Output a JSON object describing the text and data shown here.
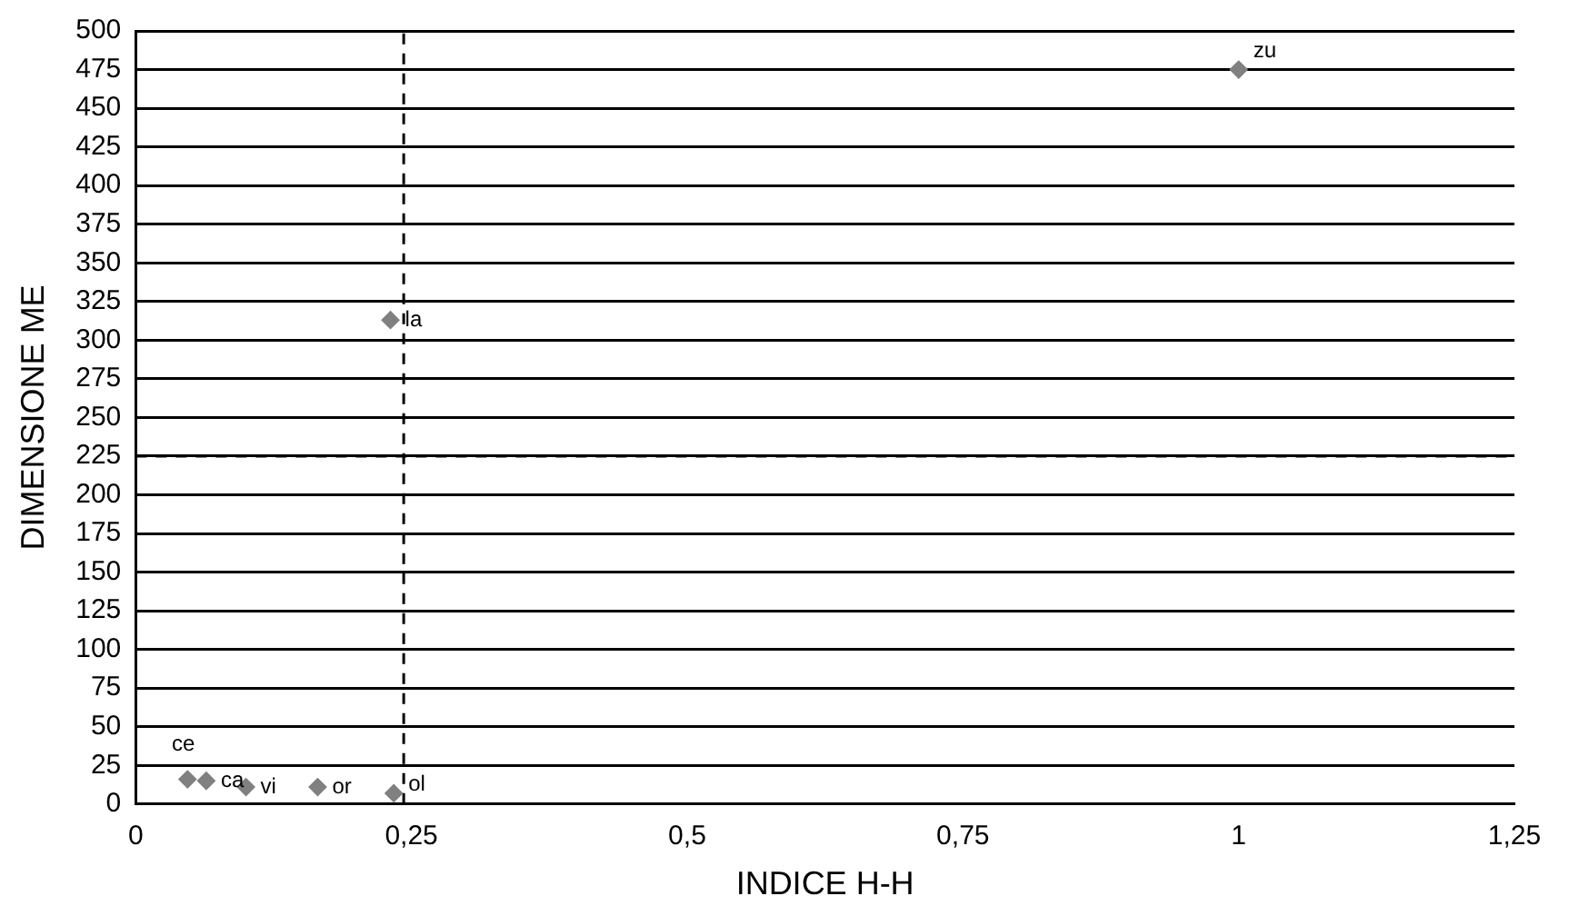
{
  "chart_data": {
    "type": "scatter",
    "xlabel": "INDICE H-H",
    "ylabel": "DIMENSIONE ME",
    "x": [
      0.047,
      0.064,
      0.1,
      0.165,
      0.234,
      0.231,
      1.0
    ],
    "series": [
      {
        "color": "#808080",
        "values": [
          16,
          15,
          11,
          11,
          7,
          313,
          475
        ]
      }
    ],
    "marker": "diamond",
    "xlim": [
      0,
      1.25
    ],
    "xticks": [
      0,
      {
        "value": 0.25,
        "label": "0,25"
      },
      {
        "value": 0.5,
        "label": "0,5"
      },
      {
        "value": 0.75,
        "label": "0,75"
      },
      1,
      {
        "value": 1.25,
        "label": "1,25"
      }
    ],
    "ylim": [
      0,
      500
    ],
    "yticks": [
      0,
      25,
      50,
      75,
      100,
      125,
      150,
      175,
      200,
      225,
      250,
      275,
      300,
      325,
      350,
      375,
      400,
      425,
      450,
      475,
      500
    ],
    "grid": "y",
    "legend": false,
    "ref_lines": [
      {
        "axis": "x",
        "value": 0.243,
        "line_style": "dashed",
        "color": "#000000"
      },
      {
        "axis": "y",
        "value": 225,
        "line_style": "dashed",
        "color": "#000000"
      }
    ],
    "annotations": [
      {
        "text": "ce",
        "x": 0.047,
        "y": 16
      },
      {
        "text": "ca",
        "x": 0.064,
        "y": 15
      },
      {
        "text": "vi",
        "x": 0.1,
        "y": 11
      },
      {
        "text": "or",
        "x": 0.165,
        "y": 11
      },
      {
        "text": "ol",
        "x": 0.234,
        "y": 7
      },
      {
        "text": "la",
        "x": 0.231,
        "y": 313
      },
      {
        "text": "zu",
        "x": 1.0,
        "y": 475
      }
    ]
  }
}
